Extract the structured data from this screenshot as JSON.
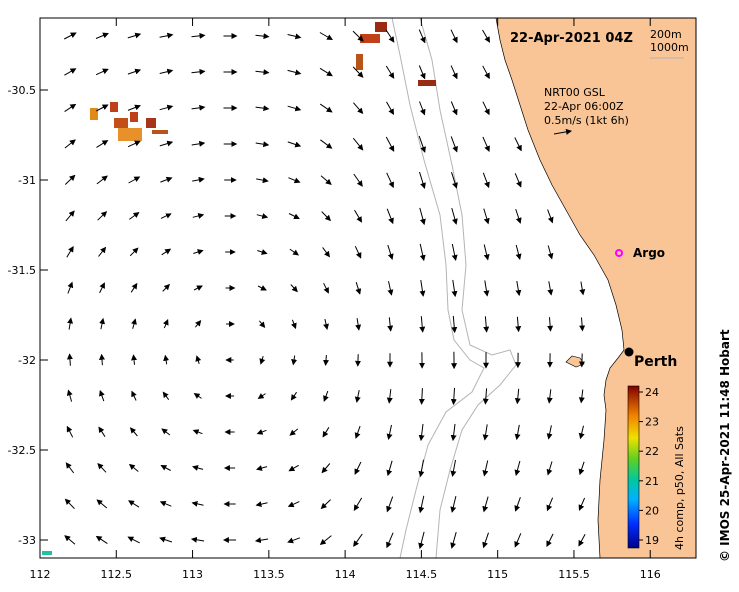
{
  "map": {
    "title": "22-Apr-2021 04Z",
    "contour_legend": [
      "200m",
      "1000m"
    ],
    "current_info": {
      "model": "NRT00 GSL",
      "time": "22-Apr 06:00Z",
      "scale": "0.5m/s (1kt 6h)"
    },
    "x_ticks": [
      "112",
      "112.5",
      "113",
      "113.5",
      "114",
      "114.5",
      "115",
      "115.5",
      "116"
    ],
    "y_ticks": [
      "-30.5",
      "-31",
      "-31.5",
      "-32",
      "-32.5",
      "-33"
    ],
    "lon_range": [
      112,
      116.3
    ],
    "lat_range": [
      -33.1,
      -30.1
    ],
    "markers": {
      "argo": {
        "label": "Argo",
        "lon": 115.8,
        "lat": -31.4
      },
      "perth": {
        "label": "Perth",
        "lon": 115.86,
        "lat": -31.95
      }
    },
    "colorbar": {
      "ticks": [
        "24",
        "23",
        "22",
        "21",
        "20",
        "19"
      ],
      "label": "4h comp, p50, All Sats"
    },
    "credit": "© IMOS 25-Apr-2021 11:48 Hobart",
    "colors": {
      "land": "#f9c596",
      "sst_warm": "#c0401a",
      "sst_mid": "#e08a1a",
      "sst_dark": "#9a2a12",
      "argo": "#ff00ff",
      "contour": "#b4b4b4"
    }
  }
}
